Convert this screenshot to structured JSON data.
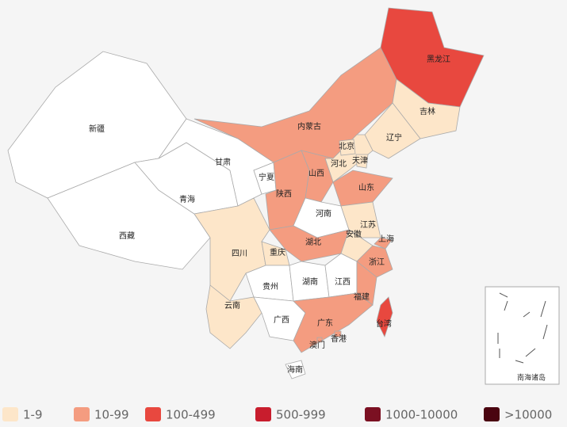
{
  "provinces": [
    {
      "name": "新疆",
      "color": "#ffffff"
    },
    {
      "name": "西藏",
      "color": "#ffffff"
    },
    {
      "name": "青海",
      "color": "#ffffff"
    },
    {
      "name": "甘肃",
      "color": "#ffffff"
    },
    {
      "name": "内蒙古",
      "color": "#f49c80"
    },
    {
      "name": "黑龙江",
      "color": "#e8483f"
    },
    {
      "name": "吉林",
      "color": "#fde6c9"
    },
    {
      "name": "辽宁",
      "color": "#fde6c9"
    },
    {
      "name": "河北",
      "color": "#fde6c9"
    },
    {
      "name": "北京",
      "color": "#fde6c9"
    },
    {
      "name": "天津",
      "color": "#fde6c9"
    },
    {
      "name": "山西",
      "color": "#f49c80"
    },
    {
      "name": "宁夏",
      "color": "#ffffff"
    },
    {
      "name": "陕西",
      "color": "#f49c80"
    },
    {
      "name": "山东",
      "color": "#f49c80"
    },
    {
      "name": "河南",
      "color": "#ffffff"
    },
    {
      "name": "湖北",
      "color": "#f49c80"
    },
    {
      "name": "江苏",
      "color": "#fde6c9"
    },
    {
      "name": "安徽",
      "color": "#fde6c9"
    },
    {
      "name": "上海",
      "color": "#f49c80"
    },
    {
      "name": "浙江",
      "color": "#f49c80"
    },
    {
      "name": "四川",
      "color": "#fde6c9"
    },
    {
      "name": "重庆",
      "color": "#fde6c9"
    },
    {
      "name": "贵州",
      "color": "#ffffff"
    },
    {
      "name": "云南",
      "color": "#fde6c9"
    },
    {
      "name": "湖南",
      "color": "#ffffff"
    },
    {
      "name": "江西",
      "color": "#ffffff"
    },
    {
      "name": "福建",
      "color": "#f49c80"
    },
    {
      "name": "广西",
      "color": "#ffffff"
    },
    {
      "name": "广东",
      "color": "#f49c80"
    },
    {
      "name": "香港",
      "color": "#f49c80"
    },
    {
      "name": "澳门",
      "color": "#f49c80"
    },
    {
      "name": "台湾",
      "color": "#e8483f"
    },
    {
      "name": "海南",
      "color": "#ffffff"
    }
  ],
  "inset": {
    "label": "南海诸岛"
  },
  "legend": [
    {
      "label": "1-9",
      "color": "#fde6c9"
    },
    {
      "label": "10-99",
      "color": "#f49c80"
    },
    {
      "label": "100-499",
      "color": "#e8483f"
    },
    {
      "label": "500-999",
      "color": "#c81d2d"
    },
    {
      "label": "1000-10000",
      "color": "#7b1022"
    },
    {
      "label": ">10000",
      "color": "#4a0410"
    }
  ]
}
